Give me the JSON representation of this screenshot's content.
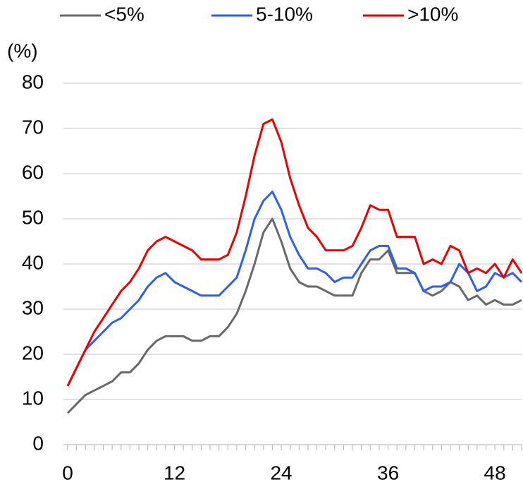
{
  "chart_data": {
    "type": "line",
    "y_label": "(%)",
    "x": [
      0,
      1,
      2,
      3,
      4,
      5,
      6,
      7,
      8,
      9,
      10,
      11,
      12,
      13,
      14,
      15,
      16,
      17,
      18,
      19,
      20,
      21,
      22,
      23,
      24,
      25,
      26,
      27,
      28,
      29,
      30,
      31,
      32,
      33,
      34,
      35,
      36,
      37,
      38,
      39,
      40,
      41,
      42,
      43,
      44,
      45,
      46,
      47,
      48,
      49,
      50,
      51
    ],
    "series": [
      {
        "name": "<5%",
        "color": "#696969",
        "values": [
          7,
          9,
          11,
          12,
          13,
          14,
          16,
          16,
          18,
          21,
          23,
          24,
          24,
          24,
          23,
          23,
          24,
          24,
          26,
          29,
          34,
          40,
          47,
          50,
          45,
          39,
          36,
          35,
          35,
          34,
          33,
          33,
          33,
          38,
          41,
          41,
          43,
          38,
          38,
          38,
          34,
          33,
          34,
          36,
          35,
          32,
          33,
          31,
          32,
          31,
          31,
          32
        ]
      },
      {
        "name": "5-10%",
        "color": "#2e5ff0",
        "values": [
          13,
          17,
          21,
          23,
          25,
          27,
          28,
          30,
          32,
          35,
          37,
          38,
          36,
          35,
          34,
          33,
          33,
          33,
          35,
          37,
          43,
          50,
          54,
          56,
          52,
          46,
          42,
          39,
          39,
          38,
          36,
          37,
          37,
          40,
          43,
          44,
          44,
          39,
          39,
          38,
          34,
          35,
          35,
          36,
          40,
          38,
          34,
          35,
          38,
          37,
          38,
          36
        ]
      },
      {
        "name": ">10%",
        "color": "#ee0000",
        "values": [
          13,
          17,
          21,
          25,
          28,
          31,
          34,
          36,
          39,
          43,
          45,
          46,
          45,
          44,
          43,
          41,
          41,
          41,
          42,
          47,
          55,
          64,
          71,
          72,
          67,
          59,
          53,
          48,
          46,
          43,
          43,
          43,
          44,
          48,
          53,
          52,
          52,
          46,
          46,
          46,
          40,
          41,
          40,
          44,
          43,
          38,
          39,
          38,
          40,
          37,
          41,
          38
        ]
      }
    ],
    "xlim": [
      0,
      51
    ],
    "xticks": [
      0,
      12,
      24,
      36,
      48
    ],
    "xminor_ticks": [
      0,
      1,
      2,
      3,
      4,
      5,
      6,
      7,
      8,
      9,
      10,
      11,
      12,
      13,
      14,
      15,
      16,
      17,
      18,
      19,
      20,
      21,
      22,
      23,
      24,
      25,
      26,
      27,
      28,
      29,
      30,
      31,
      32,
      33,
      34,
      35,
      36,
      37,
      38,
      39,
      40,
      41,
      42,
      43,
      44,
      45,
      46,
      47,
      48,
      49,
      50,
      51
    ],
    "ylim": [
      0,
      80
    ],
    "yticks": [
      0,
      10,
      20,
      30,
      40,
      50,
      60,
      70,
      80
    ],
    "grid": true,
    "legend": "top"
  }
}
